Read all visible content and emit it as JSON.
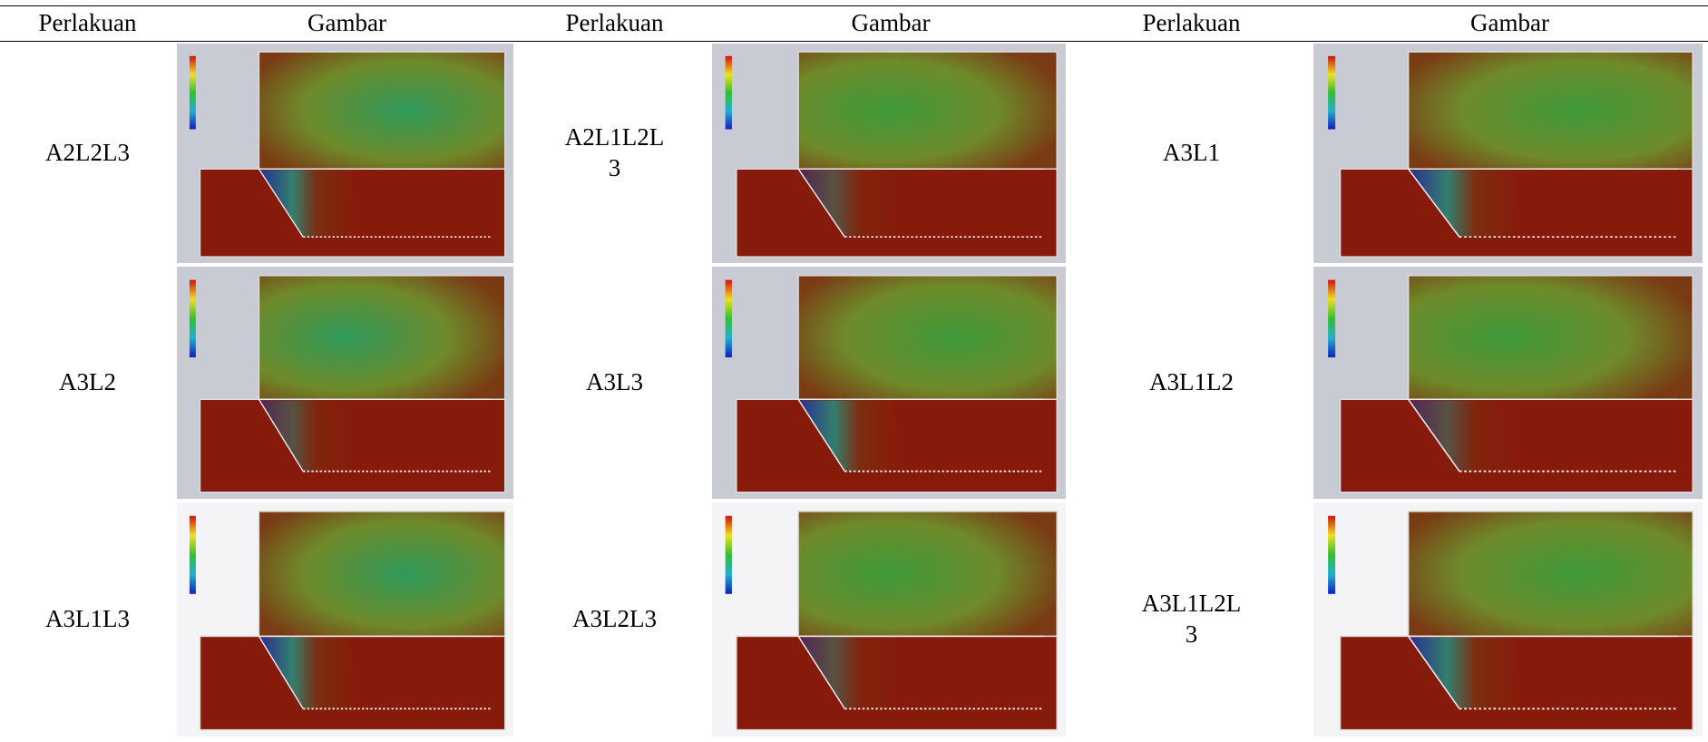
{
  "table": {
    "headers": [
      "Perlakuan",
      "Gambar",
      "Perlakuan",
      "Gambar",
      "Perlakuan",
      "Gambar"
    ],
    "rows": [
      [
        "A2L2L3",
        "A2L1L2L3",
        "A3L1"
      ],
      [
        "A3L2",
        "A3L3",
        "A3L1L2"
      ],
      [
        "A3L1L3",
        "A3L2L3",
        "A3L1L2L3"
      ]
    ]
  }
}
